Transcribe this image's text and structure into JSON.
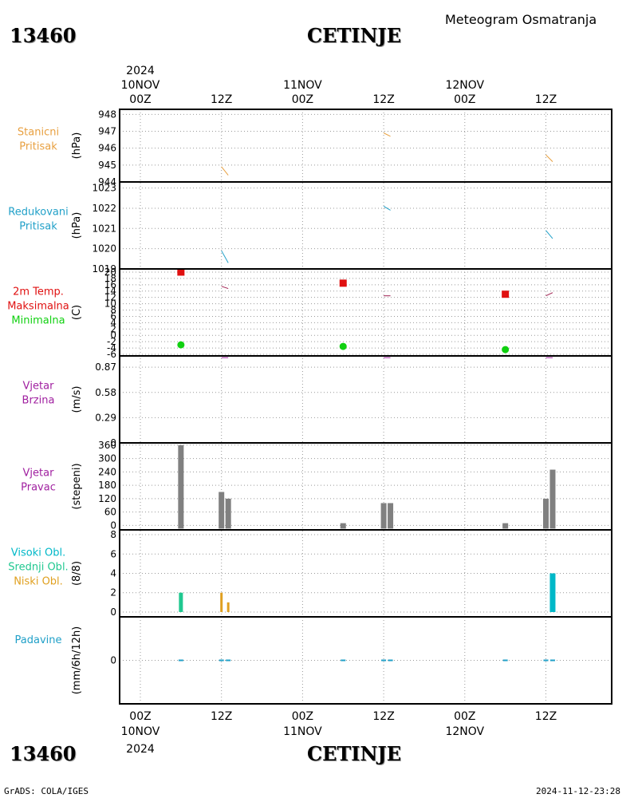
{
  "station_id": "13460",
  "station_name": "CETINJE",
  "meteogram_title": "Meteogram Osmatranja",
  "footer_left": "GrADS: COLA/IGES",
  "footer_right": "2024-11-12-23:28",
  "colors": {
    "pressure": "#e8a040",
    "reduced": "#20a0c8",
    "tmax": "#e01010",
    "tmin": "#10d010",
    "wind": "#a020a0",
    "bar": "#808080",
    "high_cloud": "#00b8c8",
    "mid_cloud": "#20c890",
    "low_cloud": "#e0a020",
    "precip": "#20a0c8"
  },
  "time_axis": {
    "year": "2024",
    "top_ticks": [
      {
        "hour": 0,
        "label": "00Z",
        "date": "10NOV"
      },
      {
        "hour": 12,
        "label": "12Z",
        "date": ""
      },
      {
        "hour": 24,
        "label": "00Z",
        "date": "11NOV"
      },
      {
        "hour": 36,
        "label": "12Z",
        "date": ""
      },
      {
        "hour": 48,
        "label": "00Z",
        "date": "12NOV"
      },
      {
        "hour": 60,
        "label": "12Z",
        "date": ""
      }
    ]
  },
  "chart_data": [
    {
      "type": "line",
      "labels": [
        "Stanicni",
        "Pritisak"
      ],
      "ylabel": "(hPa)",
      "yticks": [
        944,
        945,
        946,
        947,
        948
      ],
      "ylim": [
        944,
        948.3
      ],
      "segments": [
        {
          "x": [
            12,
            13
          ],
          "y": [
            944.9,
            944.4
          ]
        },
        {
          "x": [
            36,
            37
          ],
          "y": [
            946.9,
            946.7
          ]
        },
        {
          "x": [
            60,
            61
          ],
          "y": [
            945.6,
            945.2
          ]
        }
      ]
    },
    {
      "type": "line",
      "labels": [
        "Redukovani",
        "Pritisak"
      ],
      "ylabel": "(hPa)",
      "yticks": [
        1019,
        1020,
        1021,
        1022,
        1023
      ],
      "ylim": [
        1019,
        1023.3
      ],
      "segments": [
        {
          "x": [
            12,
            13
          ],
          "y": [
            1019.9,
            1019.3
          ]
        },
        {
          "x": [
            36,
            37
          ],
          "y": [
            1022.1,
            1021.9
          ]
        },
        {
          "x": [
            60,
            61
          ],
          "y": [
            1020.9,
            1020.5
          ]
        }
      ]
    },
    {
      "type": "scatter",
      "labels": [
        "2m Temp.",
        "Maksimalna",
        "Minimalna"
      ],
      "ylabel": "(C)",
      "yticks": [
        -6,
        -4,
        -2,
        0,
        2,
        4,
        6,
        8,
        10,
        12,
        14,
        16,
        18,
        20
      ],
      "ylim": [
        -6.5,
        21
      ],
      "tmax": {
        "x": [
          6,
          30,
          54
        ],
        "y": [
          20,
          16.5,
          13
        ]
      },
      "tmin": {
        "x": [
          6,
          30,
          54
        ],
        "y": [
          -3,
          -3.5,
          -4.5
        ]
      },
      "temp_segments": [
        {
          "x": [
            12,
            13
          ],
          "y": [
            15.5,
            14.8
          ]
        },
        {
          "x": [
            36,
            37
          ],
          "y": [
            12.5,
            12.5
          ]
        },
        {
          "x": [
            60,
            61
          ],
          "y": [
            12.5,
            13.5
          ]
        }
      ]
    },
    {
      "type": "line",
      "labels": [
        "Vjetar",
        "Brzina"
      ],
      "ylabel": "(m/s)",
      "yticks": [
        0,
        0.29,
        0.58,
        0.87
      ],
      "ylim": [
        0,
        1.0
      ],
      "segments": [
        {
          "x": [
            12,
            13
          ],
          "y": [
            0.98,
            0.98
          ]
        },
        {
          "x": [
            36,
            37
          ],
          "y": [
            0.98,
            0.98
          ]
        },
        {
          "x": [
            60,
            61
          ],
          "y": [
            0.98,
            0.98
          ]
        }
      ]
    },
    {
      "type": "bar",
      "labels": [
        "Vjetar",
        "Pravac"
      ],
      "ylabel": "(stepeni)",
      "yticks": [
        0,
        60,
        120,
        180,
        240,
        300,
        360
      ],
      "ylim": [
        -20,
        370
      ],
      "bars": {
        "x": [
          6,
          12,
          13,
          30,
          36,
          37,
          54,
          60,
          61
        ],
        "values": [
          360,
          150,
          120,
          10,
          100,
          100,
          10,
          120,
          250
        ]
      }
    },
    {
      "type": "bar",
      "labels": [
        "Visoki Obl.",
        "Srednji Obl.",
        "Niski Obl."
      ],
      "ylabel": "(8/8)",
      "yticks": [
        0,
        2,
        4,
        6,
        8
      ],
      "ylim": [
        -0.5,
        8.5
      ],
      "bars": [
        {
          "x": 6,
          "value": 2,
          "layer": "mid"
        },
        {
          "x": 12,
          "value": 2,
          "layer": "low"
        },
        {
          "x": 13,
          "value": 1,
          "layer": "low"
        },
        {
          "x": 61,
          "value": 4,
          "layer": "high"
        }
      ]
    },
    {
      "type": "bar",
      "labels": [
        "Padavine"
      ],
      "ylabel": "(mm/6h/12h)",
      "yticks": [
        0
      ],
      "ylim": [
        -5,
        5
      ],
      "bars": {
        "x": [
          6,
          12,
          13,
          30,
          36,
          37,
          54,
          60,
          61
        ],
        "values": [
          0,
          0,
          0,
          0,
          0,
          0,
          0,
          0,
          0
        ]
      }
    }
  ]
}
